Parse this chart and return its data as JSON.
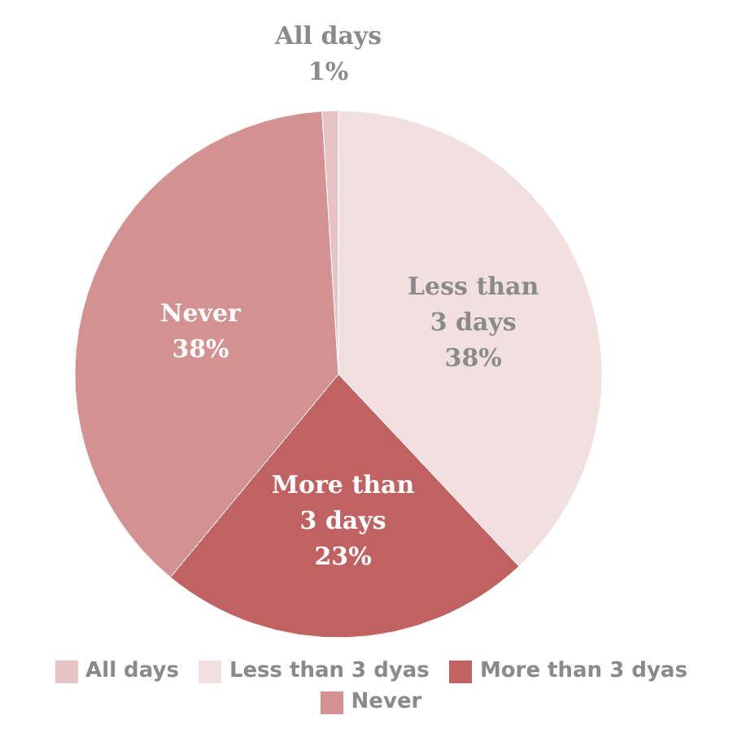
{
  "chart_data": {
    "type": "pie",
    "categories": [
      "All days",
      "Less than 3 dyas",
      "More than 3 dyas",
      "Never"
    ],
    "values": [
      1,
      38,
      23,
      38
    ],
    "colors": [
      "#e8c3c5",
      "#f2dfe0",
      "#c06261",
      "#d49191"
    ],
    "value_labels": [
      "All days\n1%",
      "Less than\n3 days\n38%",
      "More than\n3 days\n23%",
      "Never\n38%"
    ],
    "legend": "bottom"
  }
}
